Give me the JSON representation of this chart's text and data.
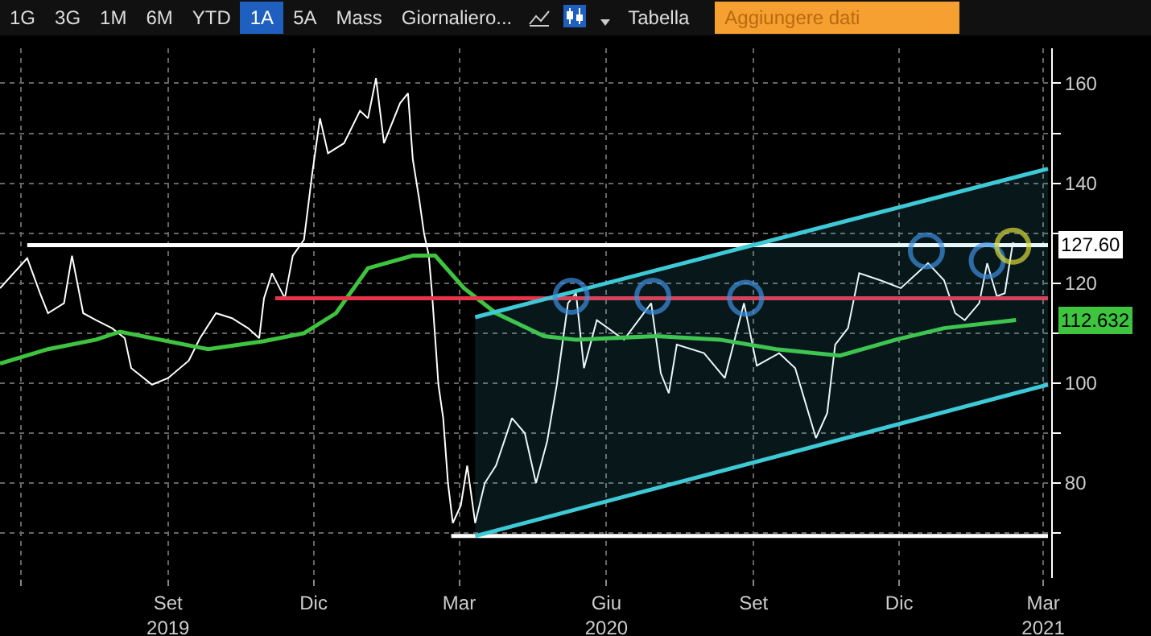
{
  "chart_data": {
    "type": "line",
    "xlim": [
      "2019-05-19",
      "2021-03-06"
    ],
    "ylim": [
      61,
      167
    ],
    "xticks": [
      {
        "value": "2019-06-01",
        "label": null
      },
      {
        "value": "2019-09-01",
        "label": "Set\n2019"
      },
      {
        "value": "2019-12-01",
        "label": "Dic"
      },
      {
        "value": "2020-03-01",
        "label": "Mar"
      },
      {
        "value": "2020-06-01",
        "label": "Giu\n2020"
      },
      {
        "value": "2020-09-01",
        "label": "Set"
      },
      {
        "value": "2020-12-01",
        "label": "Dic"
      },
      {
        "value": "2021-03-01",
        "label": "Mar\n2021"
      }
    ],
    "yticks": [
      {
        "value": 70,
        "label": null
      },
      80,
      {
        "value": 90,
        "label": null
      },
      100,
      {
        "value": 110,
        "label": null
      },
      120,
      {
        "value": 130,
        "label": null
      },
      140,
      {
        "value": 150,
        "label": null
      },
      160
    ],
    "grid": true,
    "series": [
      {
        "color": "#ffffff",
        "x": [
          "2019-05-19",
          "2019-06-05",
          "2019-06-13",
          "2019-06-18",
          "2019-06-28",
          "2019-07-03",
          "2019-07-10",
          "2019-07-18",
          "2019-07-28",
          "2019-08-05",
          "2019-08-09",
          "2019-08-22",
          "2019-09-01",
          "2019-09-14",
          "2019-09-21",
          "2019-10-01",
          "2019-10-11",
          "2019-10-21",
          "2019-10-28",
          "2019-10-31",
          "2019-11-05",
          "2019-11-13",
          "2019-11-18",
          "2019-11-25",
          "2019-11-30",
          "2019-12-05",
          "2019-12-10",
          "2019-12-20",
          "2019-12-30",
          "2020-01-04",
          "2020-01-09",
          "2020-01-14",
          "2020-01-24",
          "2020-01-29",
          "2020-02-01",
          "2020-02-05",
          "2020-02-08",
          "2020-02-11",
          "2020-02-13",
          "2020-02-15",
          "2020-02-17",
          "2020-02-20",
          "2020-02-23",
          "2020-02-26",
          "2020-03-02",
          "2020-03-06",
          "2020-03-11",
          "2020-03-17",
          "2020-03-24",
          "2020-04-03",
          "2020-04-11",
          "2020-04-18",
          "2020-04-25",
          "2020-05-01",
          "2020-05-08",
          "2020-05-13",
          "2020-05-18",
          "2020-05-26",
          "2020-06-12",
          "2020-06-29",
          "2020-07-05",
          "2020-07-10",
          "2020-07-15",
          "2020-08-01",
          "2020-08-14",
          "2020-08-26",
          "2020-09-03",
          "2020-09-17",
          "2020-09-27",
          "2020-10-03",
          "2020-10-10",
          "2020-10-17",
          "2020-10-22",
          "2020-10-30",
          "2020-11-06",
          "2020-11-19",
          "2020-12-02",
          "2020-12-19",
          "2020-12-29",
          "2021-01-05",
          "2021-01-11",
          "2021-01-20",
          "2021-01-25",
          "2021-01-31",
          "2021-02-05",
          "2021-02-10",
          "2021-02-14"
        ],
        "values": [
          119,
          125,
          118,
          114,
          116,
          125.5,
          114,
          112.6,
          111,
          109,
          103,
          99.7,
          101,
          104.5,
          109,
          114,
          113,
          111,
          109,
          117,
          122,
          117,
          125.5,
          128.7,
          141.6,
          153,
          146,
          148,
          154.5,
          153,
          161,
          148,
          156,
          158,
          144.8,
          136.8,
          130,
          125.5,
          118,
          109,
          99.7,
          93,
          80,
          72,
          75.5,
          83.5,
          72,
          80,
          83.5,
          93,
          90,
          80,
          88.4,
          99.7,
          116,
          118,
          103,
          112.6,
          108.7,
          116,
          102,
          98,
          107.7,
          106,
          101,
          116,
          103.5,
          106,
          103,
          96.5,
          89,
          94,
          107.7,
          111,
          122,
          120.6,
          119,
          124,
          120.6,
          114,
          112.6,
          116,
          124,
          117.4,
          118,
          128,
          127.6
        ]
      },
      {
        "color": "#3ec43e",
        "x": [
          "2019-05-19",
          "2019-06-18",
          "2019-07-18",
          "2019-08-02",
          "2019-09-26",
          "2019-10-31",
          "2019-11-25",
          "2019-12-15",
          "2020-01-04",
          "2020-02-01",
          "2020-02-15",
          "2020-03-04",
          "2020-03-24",
          "2020-04-23",
          "2020-05-13",
          "2020-07-02",
          "2020-08-11",
          "2020-09-15",
          "2020-10-25",
          "2020-11-29",
          "2020-12-29",
          "2021-02-12"
        ],
        "values": [
          103.9,
          106.8,
          108.7,
          110.3,
          106.8,
          108.4,
          110,
          114,
          123,
          125.5,
          125.5,
          119,
          114,
          109.4,
          108.7,
          109.4,
          108.7,
          106.8,
          105.5,
          108.7,
          111,
          112.632
        ]
      },
      {
        "color": "#e8334a",
        "x": [
          "2019-11-07",
          "2021-03-04"
        ],
        "values": [
          117,
          117
        ]
      },
      {
        "color": "#ffffff",
        "x": [
          "2019-06-05",
          "2021-03-04"
        ],
        "values": [
          127.6,
          127.6
        ]
      },
      {
        "color": "#ffffff",
        "x": [
          "2020-02-25",
          "2021-03-04"
        ],
        "values": [
          69.4,
          69.4
        ]
      },
      {
        "color": "#3ec9d6",
        "x": [
          "2020-03-11",
          "2021-03-04"
        ],
        "values": [
          113.2,
          142.9
        ],
        "lower": [
          69.4,
          99.7
        ],
        "upper": [
          113.2,
          142.9
        ]
      },
      {
        "color": "#3ec9d6",
        "x": [
          "2020-03-11",
          "2021-03-04"
        ],
        "values": [
          69.4,
          99.7
        ]
      },
      {
        "type": "scatter",
        "marker": "circle",
        "color": "#3d8fe0",
        "x": [
          "2020-05-10",
          "2020-06-30",
          "2020-08-27",
          "2020-12-18",
          "2021-01-25"
        ],
        "values": [
          117.4,
          117.4,
          117,
          126.5,
          124.5
        ]
      },
      {
        "type": "scatter",
        "marker": "circle",
        "color": "#d8d83a",
        "x": [
          "2021-02-10"
        ],
        "values": [
          127.4
        ]
      }
    ],
    "annotations": [
      "1G",
      "3G",
      "1M",
      "6M",
      "YTD",
      "1A",
      "5A",
      "Mass",
      "Giornaliero...",
      "Tabella",
      "Aggiungere dati",
      "127.60",
      "112.632"
    ]
  }
}
